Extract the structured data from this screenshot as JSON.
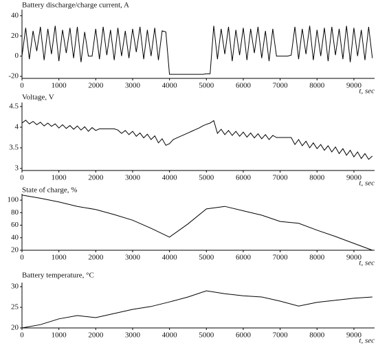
{
  "chart_data": [
    {
      "type": "line",
      "title": "Battery discharge/charge current, A",
      "xlabel": "t, sec",
      "color": "#000000",
      "x": [
        0,
        100,
        200,
        300,
        400,
        500,
        600,
        700,
        800,
        900,
        1000,
        1100,
        1200,
        1300,
        1400,
        1500,
        1600,
        1700,
        1800,
        1900,
        2000,
        2100,
        2200,
        2300,
        2400,
        2500,
        2600,
        2700,
        2800,
        2900,
        3000,
        3100,
        3200,
        3300,
        3400,
        3500,
        3600,
        3700,
        3800,
        3900,
        4000,
        4100,
        4200,
        4300,
        4400,
        4500,
        4600,
        4700,
        4800,
        4900,
        5000,
        5100,
        5200,
        5300,
        5400,
        5500,
        5600,
        5700,
        5800,
        5900,
        6000,
        6100,
        6200,
        6300,
        6400,
        6500,
        6600,
        6700,
        6800,
        6900,
        7000,
        7100,
        7200,
        7300,
        7400,
        7500,
        7600,
        7700,
        7800,
        7900,
        8000,
        8100,
        8200,
        8300,
        8400,
        8500,
        8600,
        8700,
        8800,
        8900,
        9000,
        9100,
        9200,
        9300,
        9400,
        9500
      ],
      "values": [
        0,
        28,
        -3,
        25,
        5,
        29,
        -4,
        27,
        2,
        30,
        -5,
        26,
        3,
        28,
        -2,
        29,
        -6,
        24,
        0,
        0,
        27,
        -3,
        29,
        1,
        26,
        -4,
        28,
        0,
        25,
        -2,
        27,
        4,
        29,
        -3,
        26,
        0,
        28,
        -4,
        25,
        24,
        -18,
        -18,
        -18,
        -18,
        -18,
        -18,
        -18,
        -18,
        -18,
        -18,
        -17.5,
        -17.5,
        30,
        -3,
        27,
        2,
        29,
        -5,
        26,
        1,
        28,
        -4,
        27,
        3,
        29,
        -2,
        25,
        -5,
        27,
        0,
        0,
        0,
        0,
        1,
        29,
        -3,
        27,
        2,
        30,
        -4,
        26,
        0,
        28,
        -5,
        29,
        1,
        27,
        -3,
        30,
        -6,
        28,
        0,
        26,
        -4,
        29,
        -2
      ],
      "xlim": [
        0,
        9560
      ],
      "xticks": [
        0,
        1000,
        2000,
        3000,
        4000,
        5000,
        6000,
        7000,
        8000,
        9000
      ],
      "ylim": [
        -22,
        46
      ],
      "yticks": [
        -20,
        0,
        20,
        40
      ]
    },
    {
      "type": "line",
      "title": "Voltage, V",
      "xlabel": "t, sec",
      "color": "#000000",
      "x": [
        0,
        100,
        200,
        300,
        400,
        500,
        600,
        700,
        800,
        900,
        1000,
        1100,
        1200,
        1300,
        1400,
        1500,
        1600,
        1700,
        1800,
        1900,
        2000,
        2100,
        2200,
        2300,
        2400,
        2500,
        2600,
        2700,
        2800,
        2900,
        3000,
        3100,
        3200,
        3300,
        3400,
        3500,
        3600,
        3700,
        3800,
        3900,
        4000,
        4100,
        4200,
        4300,
        4400,
        4500,
        4600,
        4700,
        4800,
        4900,
        5000,
        5100,
        5200,
        5300,
        5400,
        5500,
        5600,
        5700,
        5800,
        5900,
        6000,
        6100,
        6200,
        6300,
        6400,
        6500,
        6600,
        6700,
        6800,
        6900,
        7000,
        7100,
        7200,
        7300,
        7400,
        7500,
        7600,
        7700,
        7800,
        7900,
        8000,
        8100,
        8200,
        8300,
        8400,
        8500,
        8600,
        8700,
        8800,
        8900,
        9000,
        9100,
        9200,
        9300,
        9400,
        9500
      ],
      "values": [
        4.1,
        4.17,
        4.08,
        4.14,
        4.06,
        4.12,
        4.03,
        4.1,
        4.02,
        4.08,
        3.98,
        4.06,
        3.97,
        4.04,
        3.95,
        4.03,
        3.93,
        4.01,
        3.9,
        3.99,
        3.92,
        3.96,
        3.96,
        3.96,
        3.96,
        3.96,
        3.93,
        3.85,
        3.92,
        3.82,
        3.9,
        3.78,
        3.86,
        3.74,
        3.83,
        3.7,
        3.79,
        3.62,
        3.72,
        3.56,
        3.6,
        3.7,
        3.74,
        3.78,
        3.82,
        3.86,
        3.9,
        3.94,
        3.98,
        4.03,
        4.07,
        4.1,
        4.16,
        3.85,
        3.95,
        3.82,
        3.92,
        3.8,
        3.9,
        3.78,
        3.88,
        3.76,
        3.86,
        3.74,
        3.84,
        3.72,
        3.82,
        3.7,
        3.8,
        3.75,
        3.75,
        3.75,
        3.75,
        3.75,
        3.58,
        3.7,
        3.55,
        3.66,
        3.5,
        3.62,
        3.48,
        3.58,
        3.44,
        3.55,
        3.4,
        3.52,
        3.36,
        3.48,
        3.32,
        3.44,
        3.28,
        3.4,
        3.24,
        3.36,
        3.22,
        3.3
      ],
      "xlim": [
        0,
        9560
      ],
      "xticks": [
        0,
        1000,
        2000,
        3000,
        4000,
        5000,
        6000,
        7000,
        8000,
        9000
      ],
      "ylim": [
        2.95,
        4.6
      ],
      "yticks": [
        3,
        3.5,
        4,
        4.5
      ]
    },
    {
      "type": "line",
      "title": "State of charge, %",
      "xlabel": "t, sec",
      "color": "#000000",
      "x": [
        0,
        500,
        1000,
        1500,
        2000,
        2500,
        3000,
        3500,
        4000,
        4500,
        5000,
        5500,
        6000,
        6500,
        7000,
        7500,
        8000,
        8500,
        9000,
        9500
      ],
      "values": [
        108,
        103,
        97,
        90,
        85,
        77,
        68,
        55,
        41,
        62,
        86,
        90,
        83,
        76,
        66,
        63,
        52,
        42,
        31,
        20
      ],
      "xlim": [
        0,
        9560
      ],
      "xticks": [
        0,
        1000,
        2000,
        3000,
        4000,
        5000,
        6000,
        7000,
        8000,
        9000
      ],
      "ylim": [
        20,
        110
      ],
      "yticks": [
        20,
        40,
        60,
        80,
        100
      ]
    },
    {
      "type": "line",
      "title": "Battery temperature, °C",
      "xlabel": "t, sec",
      "color": "#000000",
      "x": [
        0,
        500,
        1000,
        1500,
        2000,
        2500,
        3000,
        3500,
        4000,
        4500,
        5000,
        5500,
        6000,
        6500,
        7000,
        7500,
        8000,
        8500,
        9000,
        9500
      ],
      "values": [
        20,
        20.8,
        22.2,
        23,
        22.5,
        23.5,
        24.5,
        25.2,
        26.3,
        27.5,
        29,
        28.3,
        27.8,
        27.5,
        26.5,
        25.3,
        26.2,
        26.7,
        27.2,
        27.5
      ],
      "xlim": [
        0,
        9560
      ],
      "xticks": [
        0,
        1000,
        2000,
        3000,
        4000,
        5000,
        6000,
        7000,
        8000,
        9000
      ],
      "ylim": [
        20,
        31
      ],
      "yticks": [
        20,
        25,
        30
      ]
    }
  ]
}
